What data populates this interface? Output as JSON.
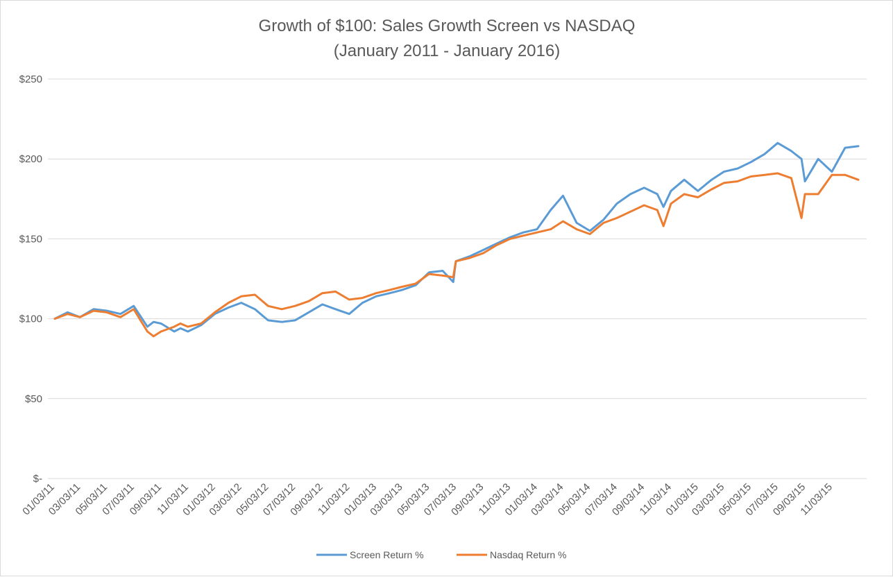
{
  "chart_data": {
    "type": "line",
    "title": [
      "Growth of $100: Sales Growth Screen vs NASDAQ",
      "(January 2011 - January 2016)"
    ],
    "xlabel": "",
    "ylabel": "",
    "ylim": [
      0,
      250
    ],
    "y_ticks": [
      {
        "value": 0,
        "label": "$-"
      },
      {
        "value": 50,
        "label": "$50"
      },
      {
        "value": 100,
        "label": "$100"
      },
      {
        "value": 150,
        "label": "$150"
      },
      {
        "value": 200,
        "label": "$200"
      },
      {
        "value": 250,
        "label": "$250"
      }
    ],
    "x_tick_labels": [
      "01/03/11",
      "03/03/11",
      "05/03/11",
      "07/03/11",
      "09/03/11",
      "11/03/11",
      "01/03/12",
      "03/03/12",
      "05/03/12",
      "07/03/12",
      "09/03/12",
      "11/03/12",
      "01/03/13",
      "03/03/13",
      "05/03/13",
      "07/03/13",
      "09/03/13",
      "11/03/13",
      "01/03/14",
      "03/03/14",
      "05/03/14",
      "07/03/14",
      "09/03/14",
      "11/03/14",
      "01/03/15",
      "03/03/15",
      "05/03/15",
      "07/03/15",
      "09/03/15",
      "11/03/15"
    ],
    "grid": "horizontal",
    "legend_position": "bottom",
    "x": [
      "01/03/11",
      "02/01/11",
      "03/01/11",
      "04/01/11",
      "05/01/11",
      "06/01/11",
      "07/01/11",
      "08/01/11",
      "08/15/11",
      "09/01/11",
      "10/01/11",
      "10/15/11",
      "11/01/11",
      "12/01/11",
      "01/01/12",
      "02/01/12",
      "03/01/12",
      "04/01/12",
      "05/01/12",
      "06/01/12",
      "07/01/12",
      "08/01/12",
      "09/01/12",
      "10/01/12",
      "11/01/12",
      "12/01/12",
      "01/01/13",
      "02/01/13",
      "03/01/13",
      "04/01/13",
      "05/01/13",
      "06/01/13",
      "06/25/13",
      "07/01/13",
      "08/01/13",
      "09/01/13",
      "10/01/13",
      "11/01/13",
      "12/01/13",
      "01/01/14",
      "02/01/14",
      "03/01/14",
      "04/01/14",
      "05/01/14",
      "06/01/14",
      "07/01/14",
      "08/01/14",
      "09/01/14",
      "10/01/14",
      "10/15/14",
      "11/01/14",
      "12/01/14",
      "01/01/15",
      "02/01/15",
      "03/01/15",
      "04/01/15",
      "05/01/15",
      "06/01/15",
      "07/01/15",
      "08/01/15",
      "08/24/15",
      "09/01/15",
      "10/01/15",
      "11/01/15",
      "12/01/15",
      "12/31/15"
    ],
    "series": [
      {
        "name": "Screen Return %",
        "color": "#5b9bd5",
        "values": [
          100,
          104,
          101,
          106,
          105,
          103,
          108,
          95,
          98,
          97,
          92,
          94,
          92,
          96,
          103,
          107,
          110,
          106,
          99,
          98,
          99,
          104,
          109,
          106,
          103,
          110,
          114,
          116,
          118,
          121,
          129,
          130,
          123,
          136,
          139,
          143,
          147,
          151,
          154,
          156,
          168,
          177,
          160,
          155,
          162,
          172,
          178,
          182,
          178,
          170,
          180,
          187,
          180,
          187,
          192,
          194,
          198,
          203,
          210,
          205,
          200,
          186,
          200,
          192,
          207,
          208
        ]
      },
      {
        "name": "Nasdaq Return %",
        "color": "#ed7d31",
        "values": [
          100,
          103,
          101,
          105,
          104,
          101,
          106,
          92,
          89,
          92,
          95,
          97,
          95,
          97,
          104,
          110,
          114,
          115,
          108,
          106,
          108,
          111,
          116,
          117,
          112,
          113,
          116,
          118,
          120,
          122,
          128,
          127,
          126,
          136,
          138,
          141,
          146,
          150,
          152,
          154,
          156,
          161,
          156,
          153,
          160,
          163,
          167,
          171,
          168,
          158,
          172,
          178,
          176,
          181,
          185,
          186,
          189,
          190,
          191,
          188,
          163,
          178,
          178,
          190,
          190,
          187
        ]
      }
    ]
  }
}
